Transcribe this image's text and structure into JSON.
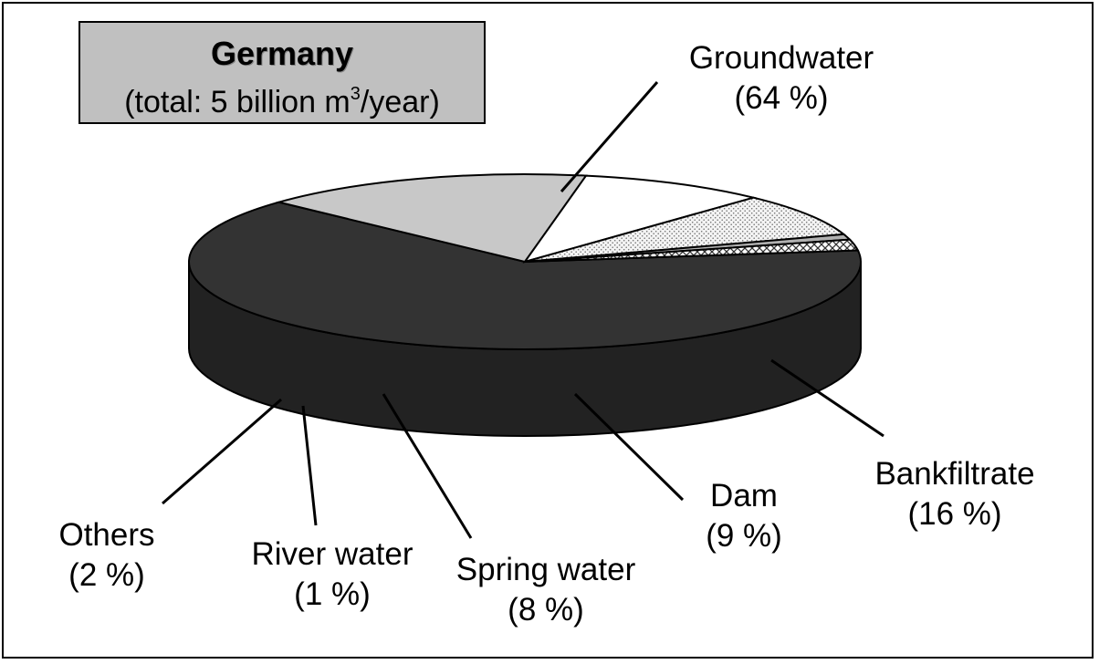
{
  "chart_data": {
    "type": "pie",
    "title": "Germany",
    "subtitle_prefix": "(total: 5 billion m",
    "subtitle_sup": "3",
    "subtitle_suffix": "/year)",
    "legend": "none",
    "slices": [
      {
        "name": "Groundwater",
        "value": 64,
        "label": "(64 %)",
        "fill": "#333333"
      },
      {
        "name": "Bankfiltrate",
        "value": 16,
        "label": "(16 %)",
        "fill": "#c8c8c8"
      },
      {
        "name": "Dam",
        "value": 9,
        "label": "(9 %)",
        "fill": "#ffffff"
      },
      {
        "name": "Spring water",
        "value": 8,
        "label": "(8 %)",
        "fill": "#e6e6e6"
      },
      {
        "name": "River water",
        "value": 1,
        "label": "(1 %)",
        "fill": "#b0b0b0"
      },
      {
        "name": "Others",
        "value": 2,
        "label": "(2 %)",
        "fill": "#dddddd"
      }
    ]
  }
}
